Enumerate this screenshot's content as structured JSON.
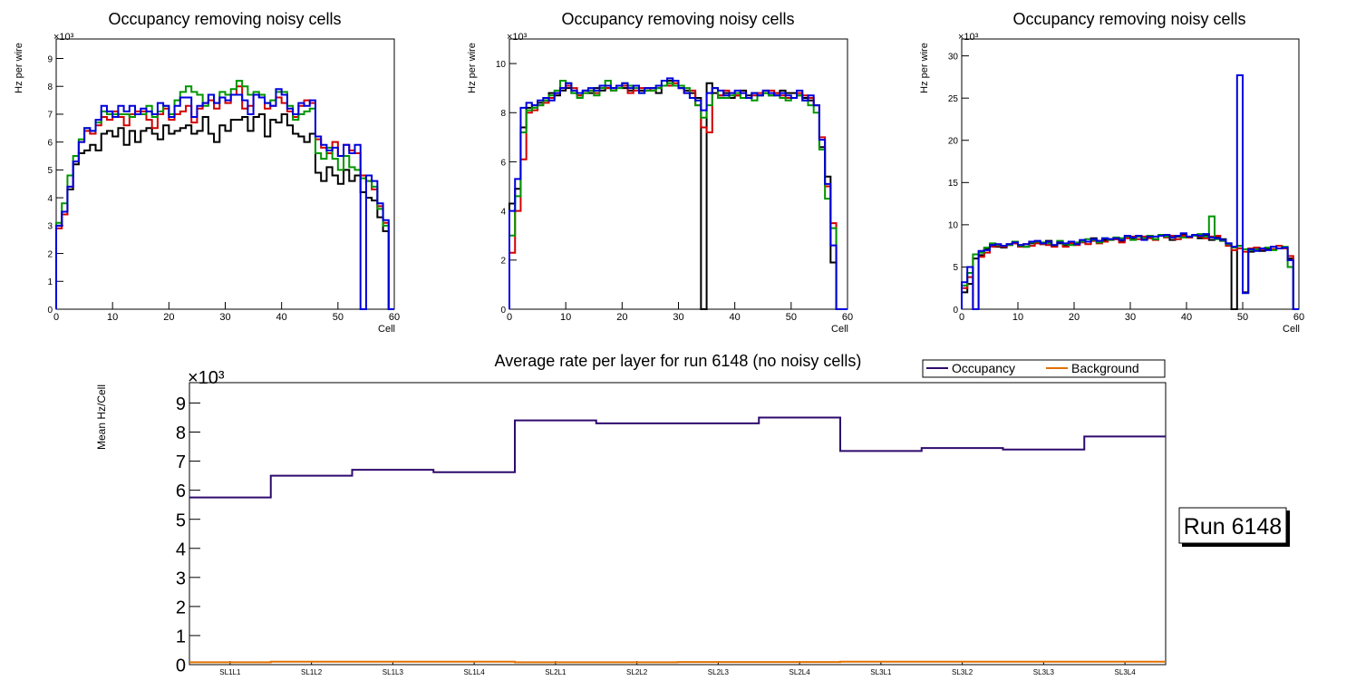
{
  "colors": {
    "black": "#000000",
    "red": "#d20000",
    "green": "#009600",
    "blue": "#0000dc",
    "occupancy": "#2e0a6e",
    "background": "#e07000"
  },
  "chart_data": [
    {
      "type": "histogram",
      "title": "Occupancy removing noisy cells",
      "xlabel": "Cell",
      "ylabel": "Hz per wire",
      "y_exponent": "×10³",
      "xlim": [
        0,
        60
      ],
      "ylim": [
        0,
        9.7
      ],
      "x_ticks": [
        0,
        10,
        20,
        30,
        40,
        50,
        60
      ],
      "y_ticks": [
        0,
        1,
        2,
        3,
        4,
        5,
        6,
        7,
        8,
        9
      ],
      "series": [
        {
          "name": "black",
          "color": "#000000",
          "values": [
            3.0,
            3.5,
            4.3,
            5.2,
            5.6,
            5.7,
            5.9,
            5.7,
            6.3,
            6.4,
            6.2,
            6.5,
            5.9,
            6.4,
            6.0,
            6.4,
            6.5,
            6.3,
            6.1,
            6.6,
            6.3,
            6.4,
            6.5,
            6.6,
            6.3,
            6.4,
            6.9,
            6.3,
            6.0,
            6.6,
            6.4,
            6.8,
            6.8,
            6.9,
            6.4,
            6.9,
            7.0,
            6.2,
            6.8,
            6.7,
            7.0,
            6.6,
            6.3,
            6.2,
            6.0,
            6.3,
            4.9,
            4.6,
            5.1,
            4.8,
            4.5,
            5.0,
            4.6,
            4.8,
            4.2,
            4.0,
            3.9,
            3.3,
            2.8,
            0.0
          ]
        },
        {
          "name": "red",
          "color": "#d20000",
          "values": [
            2.9,
            3.4,
            4.4,
            5.3,
            6.0,
            6.4,
            6.3,
            6.6,
            6.9,
            6.8,
            7.1,
            6.9,
            6.6,
            7.0,
            7.1,
            7.1,
            6.8,
            6.5,
            7.0,
            7.2,
            6.8,
            7.0,
            7.1,
            7.3,
            6.7,
            7.2,
            7.4,
            7.5,
            7.2,
            7.6,
            7.4,
            7.7,
            8.0,
            7.2,
            7.3,
            7.7,
            7.6,
            7.2,
            7.3,
            7.6,
            7.4,
            7.1,
            6.9,
            7.3,
            7.5,
            7.4,
            6.1,
            5.8,
            5.6,
            6.0,
            5.5,
            5.9,
            5.7,
            5.6,
            4.8,
            4.6,
            4.3,
            3.7,
            3.1,
            0.0
          ]
        },
        {
          "name": "green",
          "color": "#009600",
          "values": [
            3.1,
            3.8,
            4.8,
            5.5,
            6.1,
            6.5,
            6.4,
            6.7,
            7.1,
            7.0,
            7.0,
            7.0,
            7.0,
            6.9,
            7.0,
            7.0,
            7.3,
            6.9,
            7.1,
            7.3,
            7.0,
            7.5,
            7.8,
            8.0,
            7.8,
            7.7,
            7.3,
            7.7,
            7.4,
            7.8,
            7.7,
            7.9,
            8.2,
            8.0,
            7.7,
            7.8,
            7.7,
            7.4,
            7.5,
            7.8,
            7.8,
            7.3,
            6.8,
            7.0,
            7.1,
            7.2,
            5.6,
            5.4,
            5.8,
            5.4,
            5.0,
            5.5,
            5.1,
            5.0,
            4.7,
            4.6,
            4.4,
            3.6,
            3.0,
            0.0
          ]
        },
        {
          "name": "blue",
          "color": "#0000dc",
          "values": [
            3.0,
            3.5,
            4.4,
            5.3,
            6.0,
            6.5,
            6.4,
            6.8,
            7.3,
            7.1,
            6.9,
            7.3,
            7.1,
            7.3,
            7.0,
            7.2,
            7.1,
            7.0,
            7.4,
            7.3,
            6.9,
            7.3,
            7.6,
            7.6,
            6.9,
            7.3,
            7.4,
            7.7,
            7.4,
            7.6,
            7.5,
            7.7,
            7.7,
            7.5,
            7.0,
            7.7,
            7.6,
            7.4,
            7.3,
            7.9,
            7.7,
            7.2,
            7.0,
            7.4,
            7.3,
            7.5,
            6.2,
            5.9,
            5.7,
            5.8,
            5.5,
            5.9,
            5.6,
            5.9,
            0.0,
            4.8,
            4.6,
            3.8,
            3.2,
            0.0
          ]
        }
      ]
    },
    {
      "type": "histogram",
      "title": "Occupancy removing noisy cells",
      "xlabel": "Cell",
      "ylabel": "Hz per wire",
      "y_exponent": "×10³",
      "xlim": [
        0,
        60
      ],
      "ylim": [
        0,
        11
      ],
      "x_ticks": [
        0,
        10,
        20,
        30,
        40,
        50,
        60
      ],
      "y_ticks": [
        0,
        2,
        4,
        6,
        8,
        10
      ],
      "series": [
        {
          "name": "black",
          "color": "#000000",
          "values": [
            4.3,
            4.9,
            7.4,
            8.2,
            8.3,
            8.4,
            8.5,
            8.8,
            8.7,
            8.9,
            9.0,
            8.8,
            8.7,
            8.9,
            8.8,
            9.0,
            8.9,
            9.0,
            9.0,
            9.1,
            9.0,
            8.9,
            9.1,
            8.9,
            8.9,
            9.0,
            8.8,
            9.1,
            9.3,
            9.1,
            9.0,
            8.9,
            8.8,
            8.6,
            0.0,
            9.2,
            8.8,
            8.7,
            8.8,
            8.6,
            8.7,
            8.9,
            8.7,
            8.8,
            8.7,
            8.8,
            8.7,
            8.8,
            8.9,
            8.8,
            8.8,
            8.7,
            8.6,
            8.5,
            8.3,
            6.6,
            5.4,
            1.9,
            0.0,
            0.0
          ]
        },
        {
          "name": "red",
          "color": "#d20000",
          "values": [
            2.3,
            4.0,
            6.1,
            8.0,
            8.1,
            8.3,
            8.4,
            8.6,
            8.8,
            9.0,
            9.1,
            9.0,
            8.7,
            8.8,
            8.9,
            8.8,
            9.0,
            9.0,
            8.9,
            9.1,
            9.1,
            8.8,
            8.9,
            9.0,
            9.0,
            8.9,
            9.0,
            9.1,
            9.1,
            9.2,
            9.0,
            8.8,
            8.9,
            8.3,
            7.4,
            7.2,
            9.0,
            8.7,
            8.9,
            8.8,
            8.7,
            8.8,
            8.6,
            8.7,
            8.8,
            8.9,
            8.9,
            8.8,
            8.7,
            8.6,
            8.6,
            8.8,
            8.7,
            8.6,
            8.3,
            7.0,
            5.0,
            3.5,
            0.0,
            0.0
          ]
        },
        {
          "name": "green",
          "color": "#009600",
          "values": [
            3.0,
            4.6,
            7.2,
            8.1,
            8.2,
            8.3,
            8.5,
            8.7,
            8.9,
            9.3,
            9.2,
            8.8,
            8.6,
            8.8,
            8.9,
            8.7,
            9.0,
            9.3,
            8.9,
            9.0,
            9.2,
            9.1,
            9.0,
            8.8,
            8.9,
            8.9,
            9.0,
            9.1,
            9.2,
            9.1,
            9.1,
            9.0,
            8.6,
            8.3,
            7.8,
            8.3,
            9.0,
            8.6,
            8.6,
            8.7,
            8.8,
            8.6,
            8.6,
            8.5,
            8.7,
            8.8,
            8.7,
            8.7,
            8.6,
            8.5,
            8.6,
            8.7,
            8.5,
            8.3,
            8.0,
            6.5,
            4.5,
            3.3,
            0.0,
            0.0
          ]
        },
        {
          "name": "blue",
          "color": "#0000dc",
          "values": [
            4.0,
            5.3,
            8.2,
            8.4,
            8.3,
            8.5,
            8.6,
            8.5,
            8.8,
            9.0,
            9.2,
            8.9,
            8.8,
            8.9,
            9.0,
            8.9,
            9.1,
            9.1,
            9.0,
            9.1,
            9.2,
            9.0,
            9.1,
            8.8,
            9.0,
            9.0,
            9.1,
            9.3,
            9.4,
            9.3,
            9.0,
            8.8,
            8.6,
            8.5,
            8.1,
            8.8,
            9.0,
            8.9,
            8.7,
            8.8,
            8.9,
            8.8,
            8.6,
            8.8,
            8.7,
            8.9,
            8.8,
            8.7,
            8.8,
            8.7,
            8.6,
            8.9,
            8.5,
            8.7,
            8.3,
            6.9,
            5.1,
            2.6,
            0.0,
            0.0
          ]
        }
      ]
    },
    {
      "type": "histogram",
      "title": "Occupancy removing noisy cells",
      "xlabel": "Cell",
      "ylabel": "Hz per wire",
      "y_exponent": "×10³",
      "xlim": [
        0,
        60
      ],
      "ylim": [
        0,
        32
      ],
      "x_ticks": [
        0,
        10,
        20,
        30,
        40,
        50,
        60
      ],
      "y_ticks": [
        0,
        5,
        10,
        15,
        20,
        25,
        30
      ],
      "series": [
        {
          "name": "black",
          "color": "#000000",
          "values": [
            2.0,
            3.0,
            6.0,
            6.4,
            7.2,
            7.6,
            7.4,
            7.3,
            7.7,
            7.8,
            7.6,
            7.4,
            7.8,
            7.9,
            7.7,
            8.1,
            7.5,
            7.8,
            7.6,
            7.9,
            7.8,
            8.0,
            8.0,
            8.4,
            8.1,
            8.2,
            8.3,
            8.3,
            8.1,
            8.5,
            8.4,
            8.6,
            8.3,
            8.6,
            8.3,
            8.8,
            8.6,
            8.2,
            8.6,
            8.9,
            8.5,
            8.7,
            8.4,
            8.8,
            8.2,
            8.6,
            8.3,
            7.8,
            0.0,
            7.5,
            2.0,
            6.8,
            7.1,
            6.9,
            7.2,
            7.4,
            7.2,
            7.3,
            6.0,
            0.0
          ]
        },
        {
          "name": "red",
          "color": "#d20000",
          "values": [
            2.5,
            3.8,
            0.0,
            6.2,
            6.7,
            7.4,
            7.5,
            7.4,
            7.6,
            7.8,
            7.4,
            7.7,
            7.5,
            7.8,
            7.7,
            7.6,
            7.4,
            8.0,
            7.4,
            7.8,
            7.6,
            7.9,
            7.7,
            8.1,
            7.8,
            8.0,
            8.2,
            8.3,
            7.9,
            8.4,
            8.6,
            8.3,
            8.6,
            8.4,
            8.2,
            8.7,
            8.5,
            8.7,
            8.3,
            8.7,
            8.5,
            8.7,
            8.6,
            8.4,
            8.6,
            8.7,
            8.1,
            7.5,
            7.0,
            7.2,
            6.8,
            7.2,
            7.3,
            7.1,
            7.3,
            7.1,
            7.5,
            7.2,
            6.3,
            0.0
          ]
        },
        {
          "name": "green",
          "color": "#009600",
          "values": [
            2.8,
            4.3,
            6.5,
            6.7,
            7.3,
            7.8,
            7.6,
            7.5,
            7.6,
            8.0,
            7.5,
            7.4,
            7.9,
            8.0,
            7.9,
            7.8,
            7.6,
            8.1,
            7.7,
            7.6,
            7.9,
            8.0,
            8.3,
            8.2,
            7.9,
            8.4,
            8.2,
            8.5,
            8.4,
            8.6,
            8.2,
            8.6,
            8.4,
            8.7,
            8.3,
            8.8,
            8.6,
            8.5,
            8.7,
            8.5,
            8.6,
            8.7,
            8.9,
            8.6,
            11.0,
            8.3,
            8.1,
            7.7,
            7.3,
            7.5,
            7.1,
            7.0,
            7.1,
            7.2,
            7.3,
            7.0,
            7.2,
            7.4,
            5.0,
            0.0
          ]
        },
        {
          "name": "blue",
          "color": "#0000dc",
          "values": [
            3.2,
            5.0,
            0.0,
            6.9,
            7.0,
            7.6,
            7.7,
            7.5,
            7.7,
            7.9,
            7.6,
            7.7,
            8.0,
            8.1,
            7.8,
            8.0,
            7.6,
            7.9,
            7.8,
            8.0,
            7.7,
            8.2,
            8.0,
            8.3,
            8.1,
            8.4,
            8.3,
            8.4,
            8.2,
            8.7,
            8.5,
            8.7,
            8.2,
            8.6,
            8.6,
            8.7,
            8.8,
            8.5,
            8.7,
            9.0,
            8.6,
            8.8,
            8.7,
            8.9,
            8.5,
            8.4,
            8.2,
            7.8,
            7.4,
            27.7,
            1.9,
            7.1,
            6.9,
            7.2,
            7.0,
            7.4,
            7.2,
            7.3,
            5.8,
            0.0
          ]
        }
      ]
    },
    {
      "type": "histogram",
      "title": "Average rate per layer for run 6148 (no noisy cells)",
      "xlabel": "",
      "ylabel": "Mean Hz/Cell",
      "y_exponent": "×10³",
      "ylim": [
        0,
        9.7
      ],
      "y_ticks": [
        0,
        1,
        2,
        3,
        4,
        5,
        6,
        7,
        8,
        9
      ],
      "categories": [
        "SL1L1",
        "SL1L2",
        "SL1L3",
        "SL1L4",
        "SL2L1",
        "SL2L2",
        "SL2L3",
        "SL2L4",
        "SL3L1",
        "SL3L2",
        "SL3L3",
        "SL3L4"
      ],
      "series": [
        {
          "name": "Occupancy",
          "color": "#2e0a6e",
          "values": [
            5.75,
            6.5,
            6.7,
            6.62,
            8.4,
            8.3,
            8.3,
            8.5,
            7.35,
            7.45,
            7.4,
            7.85
          ]
        },
        {
          "name": "Background",
          "color": "#e07000",
          "values": [
            0.08,
            0.1,
            0.1,
            0.1,
            0.08,
            0.08,
            0.09,
            0.09,
            0.1,
            0.1,
            0.1,
            0.1
          ]
        }
      ],
      "legend": {
        "position": "top-right",
        "entries": [
          "Occupancy",
          "Background"
        ]
      },
      "annotation": "Run 6148"
    }
  ]
}
